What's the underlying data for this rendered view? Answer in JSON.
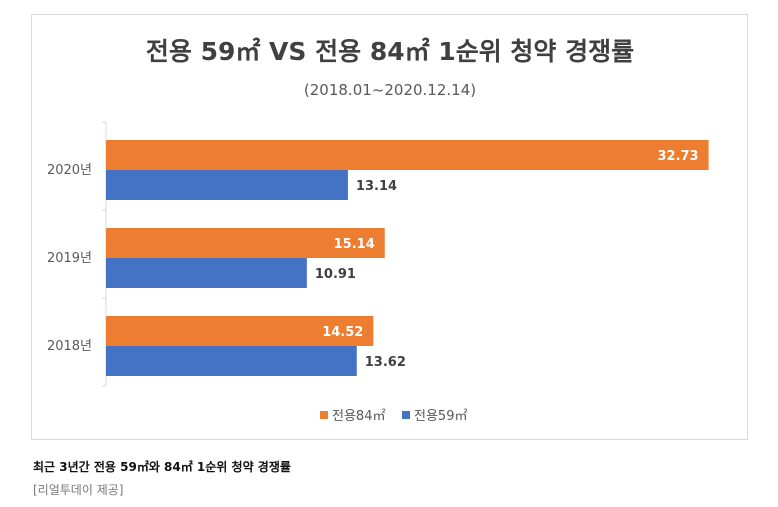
{
  "chart_data": {
    "type": "bar",
    "orientation": "horizontal",
    "title": "전용 59㎡ VS 전용 84㎡ 1순위 청약 경쟁률",
    "subtitle": "(2018.01~2020.12.14)",
    "categories": [
      "2020년",
      "2019년",
      "2018년"
    ],
    "series": [
      {
        "name": "전용84㎡",
        "values": [
          32.73,
          15.14,
          14.52
        ],
        "color": "#ED7D31"
      },
      {
        "name": "전용59㎡",
        "values": [
          13.14,
          10.91,
          13.62
        ],
        "color": "#4472C4"
      }
    ],
    "xlim": [
      0,
      34
    ],
    "legend": "bottom-center",
    "grid": false
  },
  "caption": "최근 3년간 전용 59㎡와 84㎡ 1순위 청약 경쟁률",
  "source": "[리얼투데이 제공]"
}
